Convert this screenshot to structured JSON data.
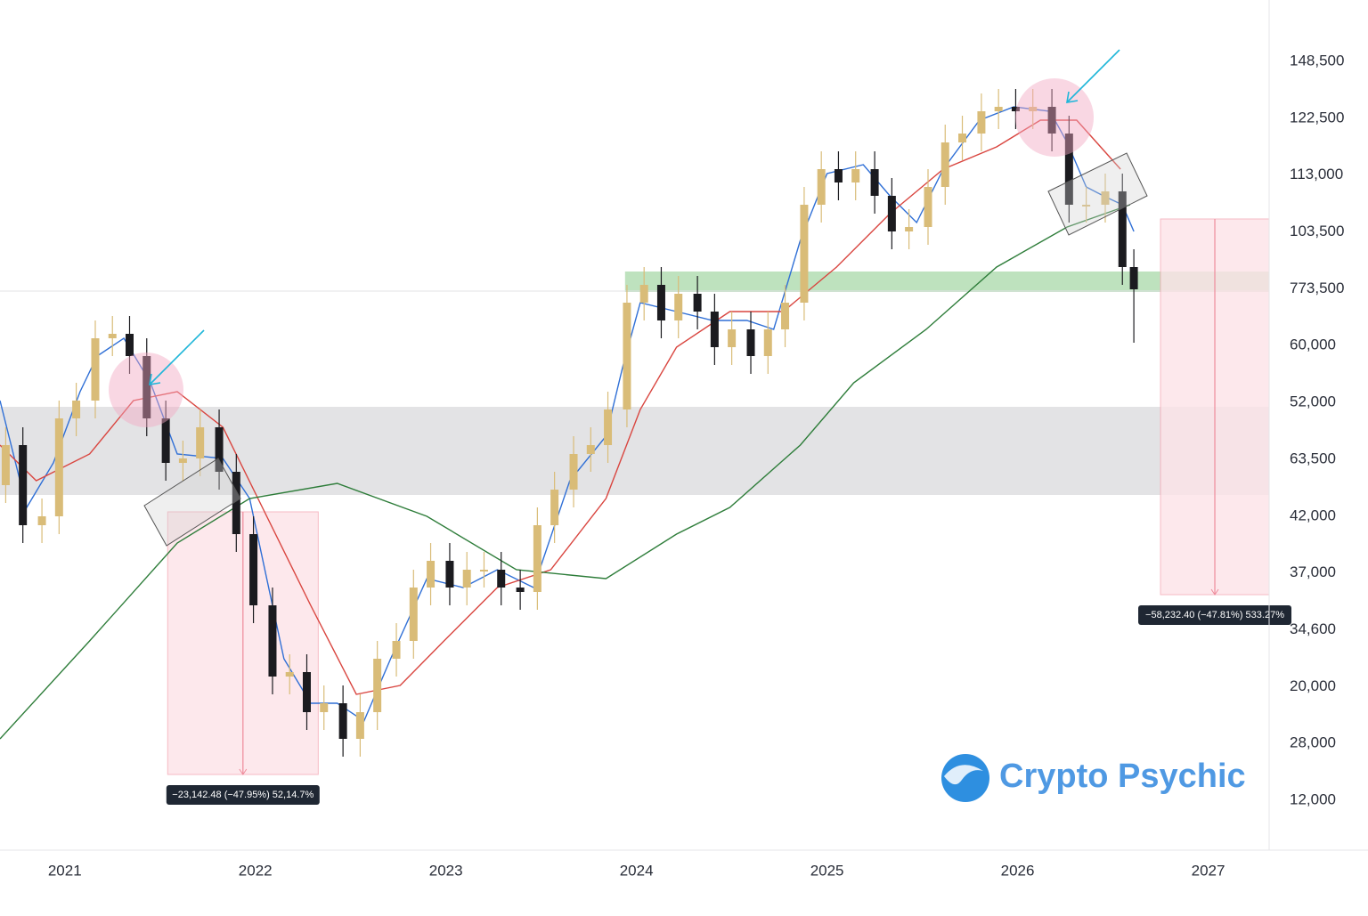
{
  "chart_data": {
    "type": "candlestick",
    "watermark": "Crypto Psychic",
    "xlim": [
      2020.66,
      2027.32
    ],
    "xticks": [
      2021,
      2022,
      2023,
      2024,
      2025,
      2026,
      2027
    ],
    "ylim": [
      0,
      139950
    ],
    "y_axis_labels": [
      "148,500",
      "122,500",
      "113,000",
      "103,500",
      "773,500",
      "60,000",
      "52,000",
      "63,500",
      "42,000",
      "37,000",
      "34,600",
      "20,000",
      "28,000",
      "12,000"
    ],
    "up_color": "#d9bc78",
    "down_color": "#1b1b1f",
    "x": [
      2020.69,
      2020.78,
      2020.88,
      2020.97,
      2021.06,
      2021.16,
      2021.25,
      2021.34,
      2021.43,
      2021.53,
      2021.62,
      2021.71,
      2021.81,
      2021.9,
      2021.99,
      2022.09,
      2022.18,
      2022.27,
      2022.36,
      2022.46,
      2022.55,
      2022.64,
      2022.74,
      2022.83,
      2022.92,
      2023.02,
      2023.11,
      2023.2,
      2023.29,
      2023.39,
      2023.48,
      2023.57,
      2023.67,
      2023.76,
      2023.85,
      2023.95,
      2024.04,
      2024.13,
      2024.22,
      2024.32,
      2024.41,
      2024.5,
      2024.6,
      2024.69,
      2024.78,
      2024.88,
      2024.97,
      2025.06,
      2025.15,
      2025.25,
      2025.34,
      2025.43,
      2025.53,
      2025.62,
      2025.71,
      2025.81,
      2025.9,
      2025.99,
      2026.08,
      2026.18,
      2026.27,
      2026.36,
      2026.46,
      2026.55,
      2026.61
    ],
    "open": [
      61500,
      68250,
      54750,
      56250,
      72750,
      75750,
      86250,
      87000,
      83250,
      72750,
      65250,
      66000,
      71250,
      63750,
      53250,
      41250,
      29250,
      30000,
      23250,
      24750,
      18750,
      23250,
      32250,
      35250,
      44250,
      48750,
      44250,
      47250,
      47250,
      44250,
      43500,
      54750,
      60750,
      66750,
      68250,
      74250,
      92250,
      95250,
      89250,
      93750,
      90750,
      84750,
      87750,
      83250,
      87750,
      92250,
      108750,
      114750,
      112500,
      114750,
      110250,
      104250,
      105000,
      111750,
      119250,
      120750,
      124500,
      125250,
      124500,
      125250,
      120750,
      108750,
      108750,
      111000,
      98250
    ],
    "high": [
      71250,
      71250,
      59250,
      75750,
      78750,
      89250,
      90000,
      90000,
      86250,
      75750,
      69000,
      74250,
      74250,
      66750,
      56250,
      44250,
      33000,
      33000,
      27750,
      27750,
      26250,
      35250,
      38250,
      47250,
      51750,
      51750,
      50250,
      50250,
      50250,
      47250,
      57750,
      63750,
      69750,
      71250,
      77250,
      95250,
      98250,
      98250,
      96750,
      96750,
      93750,
      90750,
      90750,
      90750,
      95250,
      111750,
      117750,
      117750,
      117750,
      117750,
      113250,
      108000,
      114750,
      122250,
      123750,
      127500,
      128250,
      128250,
      128250,
      128250,
      123750,
      111750,
      114000,
      114000,
      101250
    ],
    "low": [
      58500,
      51750,
      51750,
      53250,
      69750,
      72750,
      83250,
      80250,
      69750,
      62250,
      62250,
      63000,
      60750,
      50250,
      38250,
      26250,
      26250,
      20250,
      20250,
      15750,
      15750,
      20250,
      29250,
      32250,
      41250,
      41250,
      41250,
      44250,
      41250,
      40500,
      40500,
      51750,
      57750,
      63750,
      65250,
      71250,
      89250,
      86250,
      86250,
      87750,
      81750,
      81750,
      80250,
      80250,
      84750,
      89250,
      105750,
      109500,
      109500,
      107250,
      101250,
      101250,
      102000,
      108750,
      116250,
      117750,
      121500,
      121500,
      121500,
      117750,
      105750,
      105750,
      105750,
      95250,
      85500
    ],
    "close": [
      68250,
      54750,
      56250,
      72750,
      75750,
      86250,
      87000,
      83250,
      72750,
      65250,
      66000,
      71250,
      63750,
      53250,
      41250,
      29250,
      30000,
      23250,
      24750,
      18750,
      23250,
      32250,
      35250,
      44250,
      48750,
      44250,
      47250,
      47250,
      44250,
      43500,
      54750,
      60750,
      66750,
      68250,
      74250,
      92250,
      95250,
      89250,
      93750,
      90750,
      84750,
      87750,
      83250,
      87750,
      92250,
      108750,
      114750,
      112500,
      114750,
      110250,
      104250,
      105000,
      111750,
      119250,
      120750,
      124500,
      125250,
      124500,
      125250,
      120750,
      108750,
      108750,
      111000,
      98250,
      94500
    ],
    "lines": [
      {
        "color": "#2f6fd6",
        "x": [
          2020.66,
          2020.8,
          2020.94,
          2021.08,
          2021.17,
          2021.31,
          2021.45,
          2021.59,
          2021.83,
          2021.97,
          2022.06,
          2022.15,
          2022.29,
          2022.43,
          2022.57,
          2022.71,
          2022.9,
          2023.09,
          2023.27,
          2023.46,
          2023.65,
          2023.84,
          2023.93,
          2024.02,
          2024.21,
          2024.4,
          2024.58,
          2024.72,
          2024.86,
          2025.0,
          2025.19,
          2025.33,
          2025.47,
          2025.61,
          2025.8,
          2025.98,
          2026.17,
          2026.26,
          2026.36,
          2026.45,
          2026.55,
          2026.61
        ],
        "values": [
          75750,
          57750,
          65250,
          77250,
          83250,
          86250,
          78750,
          66750,
          66000,
          59250,
          45750,
          32250,
          24750,
          24750,
          21750,
          32250,
          45750,
          44250,
          47250,
          44250,
          62250,
          69750,
          81750,
          92250,
          90750,
          89250,
          89250,
          87750,
          102750,
          114000,
          115500,
          110250,
          105750,
          114750,
          123000,
          125250,
          124500,
          119250,
          111750,
          110250,
          108750,
          104250
        ]
      },
      {
        "color": "#d9453f",
        "x": [
          2020.66,
          2020.85,
          2021.13,
          2021.36,
          2021.59,
          2021.83,
          2022.06,
          2022.29,
          2022.53,
          2022.76,
          2022.99,
          2023.27,
          2023.55,
          2023.84,
          2024.02,
          2024.21,
          2024.49,
          2024.77,
          2025.05,
          2025.33,
          2025.61,
          2025.89,
          2026.12,
          2026.31,
          2026.54
        ],
        "values": [
          68250,
          62250,
          66750,
          75750,
          77250,
          71250,
          56250,
          41250,
          26250,
          27750,
          35250,
          44250,
          47250,
          59250,
          74250,
          84750,
          90750,
          90750,
          98250,
          107250,
          114750,
          118500,
          123000,
          123000,
          114750
        ]
      },
      {
        "color": "#2e7d3a",
        "x": [
          2020.66,
          2021.13,
          2021.59,
          2021.97,
          2022.43,
          2022.9,
          2023.37,
          2023.84,
          2024.21,
          2024.49,
          2024.86,
          2025.14,
          2025.52,
          2025.89,
          2026.26,
          2026.59
        ],
        "values": [
          18750,
          35250,
          51750,
          59250,
          61800,
          56250,
          47250,
          45750,
          53250,
          57750,
          68250,
          78750,
          87750,
          98250,
          105000,
          108750
        ]
      }
    ],
    "zones": [
      {
        "color": "#d9dadc",
        "x": [
          2020.66,
          2027.32
        ],
        "y": [
          59850,
          74700
        ]
      },
      {
        "color": "#a8d8a8",
        "x": [
          2023.94,
          2027.32
        ],
        "y": [
          94050,
          97500
        ]
      }
    ],
    "measures": [
      {
        "x": [
          2021.54,
          2022.33
        ],
        "y": [
          57000,
          12750
        ],
        "label": "−23,142.48 (−47.95%) 52,14.7%"
      },
      {
        "x": [
          2026.75,
          2027.32
        ],
        "y": [
          106350,
          43050
        ],
        "label": "−58,232.40 (−47.81%) 533.27%"
      }
    ]
  }
}
